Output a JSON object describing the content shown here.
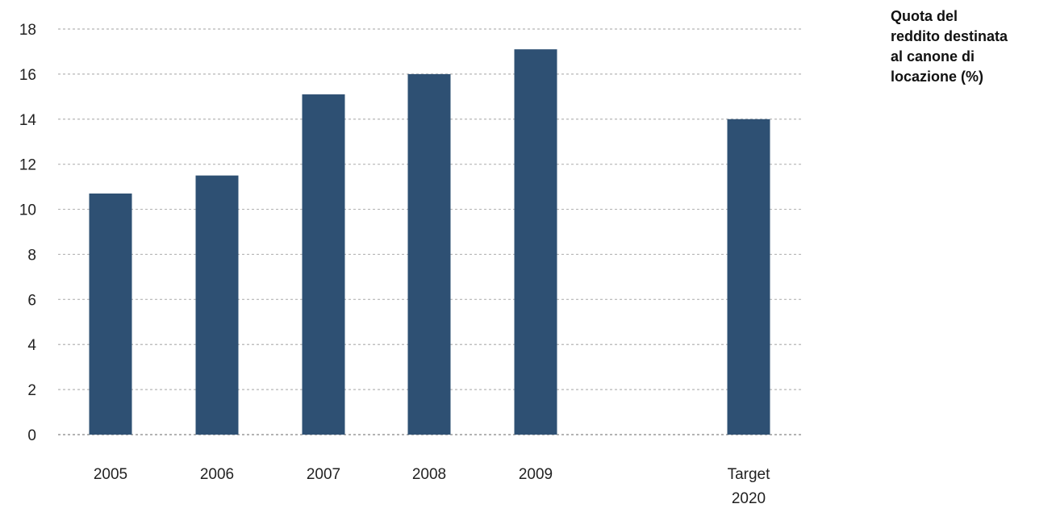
{
  "chart_data": {
    "type": "bar",
    "categories": [
      "2005",
      "2006",
      "2007",
      "2008",
      "2009",
      "Target 2020"
    ],
    "category_lines": [
      [
        "2005"
      ],
      [
        "2006"
      ],
      [
        "2007"
      ],
      [
        "2008"
      ],
      [
        "2009"
      ],
      [
        "Target",
        "2020"
      ]
    ],
    "values": [
      10.7,
      11.5,
      15.1,
      16.0,
      17.1,
      14.0
    ],
    "ylim": [
      0,
      18
    ],
    "yticks": [
      "0",
      "2",
      "4",
      "6",
      "8",
      "10",
      "12",
      "14",
      "16",
      "18"
    ],
    "series_label_lines": [
      "Quota del",
      "reddito destinata",
      "al canone di",
      "locazione (%)"
    ],
    "bar_color": "#2e5073",
    "grid": true,
    "grid_style": "dashed"
  }
}
